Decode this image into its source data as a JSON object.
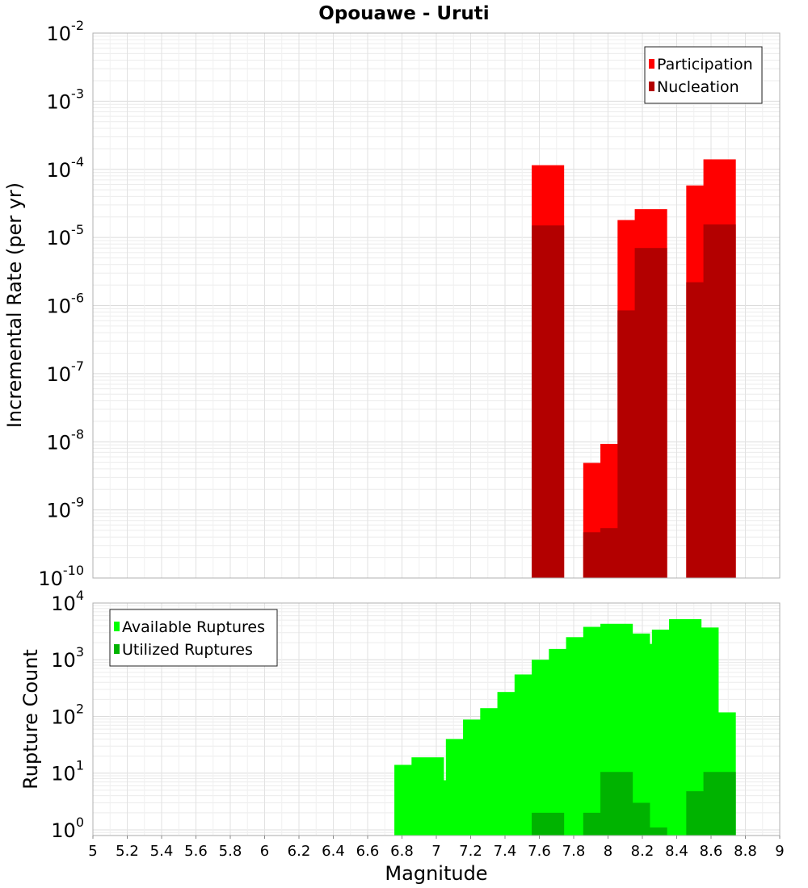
{
  "title": "Opouawe - Uruti",
  "chart_data": [
    {
      "type": "bar",
      "ylabel": "Incremental Rate (per yr)",
      "yscale": "log",
      "ylim_exp": [
        -10,
        -2
      ],
      "y_tick_base": "10",
      "y_tick_exponents": [
        "-2",
        "-3",
        "-4",
        "-5",
        "-6",
        "-7",
        "-8",
        "-9",
        "-10"
      ],
      "grid": true,
      "legend_placement": "top-right",
      "series": [
        {
          "name": "Participation",
          "color": "#ff0000",
          "x": [
            7.65,
            7.95,
            8.05,
            8.15,
            8.25,
            8.55,
            8.65
          ],
          "values": [
            0.000115,
            4.9e-09,
            9.3e-09,
            1.8e-05,
            2.6e-05,
            5.8e-05,
            0.00014
          ]
        },
        {
          "name": "Nucleation",
          "color": "#b30000",
          "x": [
            7.65,
            7.95,
            8.05,
            8.15,
            8.25,
            8.55,
            8.65
          ],
          "values": [
            1.5e-05,
            4.7e-10,
            5.4e-10,
            8.5e-07,
            7e-06,
            2.2e-06,
            1.55e-05
          ]
        }
      ]
    },
    {
      "type": "bar",
      "xlabel": "Magnitude",
      "ylabel": "Rupture Count",
      "yscale": "log",
      "ylim_exp": [
        -0.1,
        4
      ],
      "y_tick_base": "10",
      "y_tick_exponents": [
        "4",
        "3",
        "2",
        "1",
        "0"
      ],
      "xlim": [
        5,
        9
      ],
      "x_ticks": [
        "5",
        "5.2",
        "5.4",
        "5.6",
        "5.8",
        "6",
        "6.2",
        "6.4",
        "6.6",
        "6.8",
        "7",
        "7.2",
        "7.4",
        "7.6",
        "7.8",
        "8",
        "8.2",
        "8.4",
        "8.6",
        "8.8",
        "9"
      ],
      "grid": true,
      "legend_placement": "top-left",
      "series": [
        {
          "name": "Available Ruptures",
          "color": "#00ff00",
          "x": [
            6.85,
            6.95,
            7.05,
            7.15,
            7.25,
            7.35,
            7.45,
            7.55,
            7.65,
            7.75,
            7.85,
            7.95,
            8.05,
            8.15,
            8.25,
            8.35,
            8.45,
            8.55,
            8.65
          ],
          "values": [
            14,
            19,
            7.5,
            40,
            88,
            140,
            270,
            550,
            1000,
            1550,
            2500,
            3800,
            4300,
            2900,
            1900,
            3400,
            5200,
            3700,
            118
          ]
        },
        {
          "name": "Utilized Ruptures",
          "color": "#00b300",
          "x": [
            7.65,
            7.95,
            8.05,
            8.15,
            8.25,
            8.55,
            8.65
          ],
          "values": [
            2,
            2,
            10.5,
            3,
            1.1,
            4.8,
            10.5
          ]
        }
      ]
    }
  ]
}
